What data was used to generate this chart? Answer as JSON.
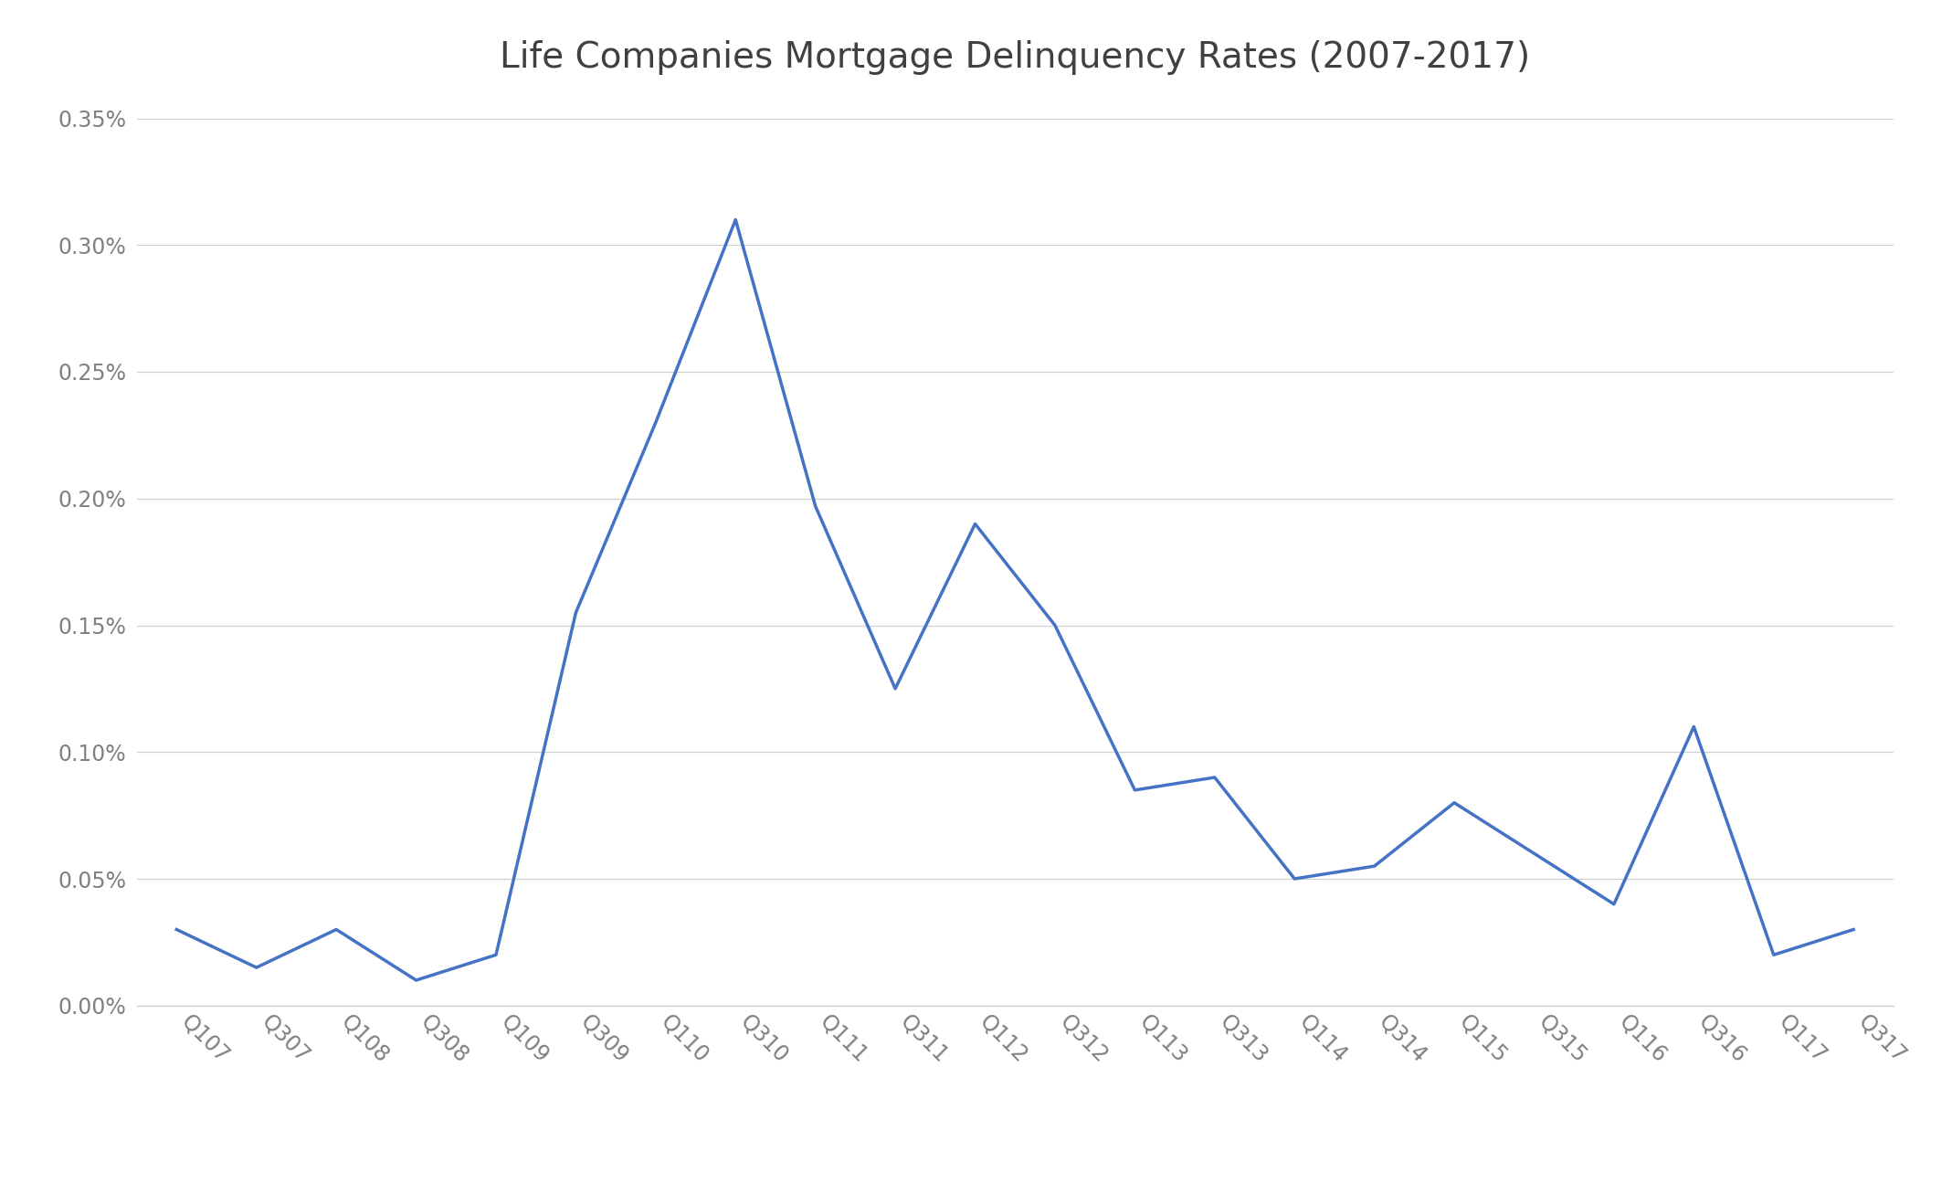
{
  "title": "Life Companies Mortgage Delinquency Rates (2007-2017)",
  "x_labels": [
    "Q107",
    "Q307",
    "Q108",
    "Q308",
    "Q109",
    "Q309",
    "Q110",
    "Q310",
    "Q111",
    "Q311",
    "Q112",
    "Q312",
    "Q113",
    "Q313",
    "Q114",
    "Q314",
    "Q115",
    "Q315",
    "Q116",
    "Q316",
    "Q117",
    "Q317"
  ],
  "y_values": [
    0.0003,
    0.00015,
    0.0003,
    0.0001,
    0.0002,
    0.00155,
    0.0023,
    0.0031,
    0.00197,
    0.00125,
    0.0019,
    0.0015,
    0.00085,
    0.0009,
    0.0005,
    0.00055,
    0.0008,
    0.0006,
    0.0004,
    0.0011,
    0.0002,
    0.0003
  ],
  "line_color": "#4472C4",
  "line_width": 2.5,
  "background_color": "#ffffff",
  "grid_color": "#d0d0d0",
  "ylim": [
    0.0,
    0.0035
  ],
  "yticks": [
    0.0,
    0.0005,
    0.001,
    0.0015,
    0.002,
    0.0025,
    0.003,
    0.0035
  ],
  "ytick_labels": [
    "0.00%",
    "0.05%",
    "0.10%",
    "0.15%",
    "0.20%",
    "0.25%",
    "0.30%",
    "0.35%"
  ],
  "title_fontsize": 28,
  "tick_fontsize": 17,
  "tick_color": "#808080"
}
